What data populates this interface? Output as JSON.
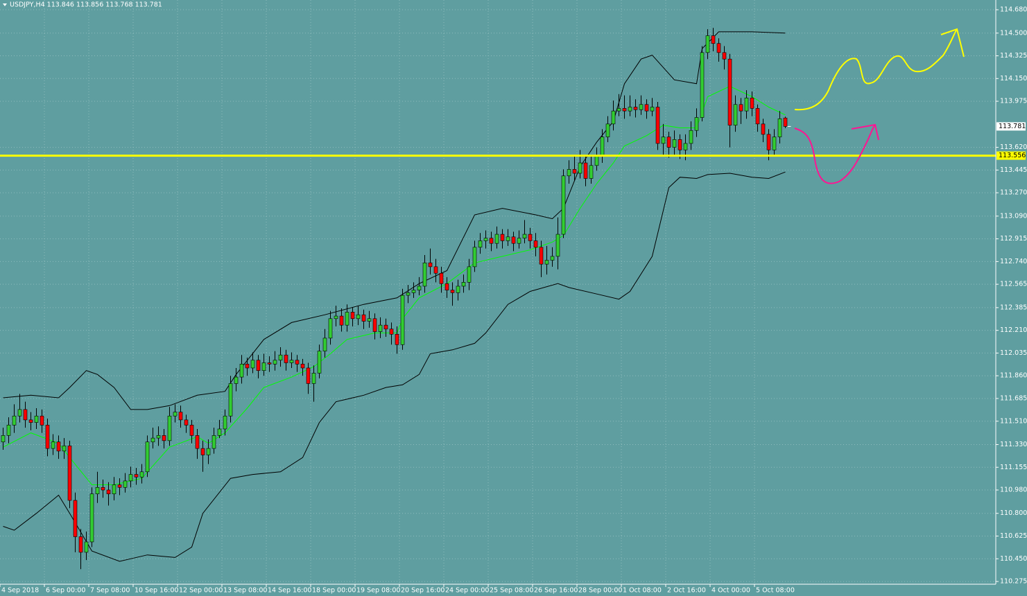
{
  "chart_data": {
    "type": "candlestick",
    "title": "USDJPY,H4  113.846 113.856 113.768 113.781",
    "categories": [
      "4 Sep 2018",
      null,
      null,
      null,
      null,
      null,
      null,
      null,
      "6 Sep 00:00",
      null,
      null,
      null,
      null,
      null,
      null,
      null,
      "7 Sep 08:00",
      null,
      null,
      null,
      null,
      null,
      null,
      null,
      "10 Sep 16:00",
      null,
      null,
      null,
      null,
      null,
      null,
      null,
      "12 Sep 00:00",
      null,
      null,
      null,
      null,
      null,
      null,
      null,
      "13 Sep 08:00",
      null,
      null,
      null,
      null,
      null,
      null,
      null,
      "14 Sep 16:00",
      null,
      null,
      null,
      null,
      null,
      null,
      null,
      "18 Sep 00:00",
      null,
      null,
      null,
      null,
      null,
      null,
      null,
      "19 Sep 08:00",
      null,
      null,
      null,
      null,
      null,
      null,
      null,
      "20 Sep 16:00",
      null,
      null,
      null,
      null,
      null,
      null,
      null,
      "24 Sep 00:00",
      null,
      null,
      null,
      null,
      null,
      null,
      null,
      "25 Sep 08:00",
      null,
      null,
      null,
      null,
      null,
      null,
      null,
      "26 Sep 16:00",
      null,
      null,
      null,
      null,
      null,
      null,
      null,
      "28 Sep 00:00",
      null,
      null,
      null,
      null,
      null,
      null,
      null,
      "1 Oct 08:00",
      null,
      null,
      null,
      null,
      null,
      null,
      null,
      "2 Oct 16:00",
      null,
      null,
      null,
      null,
      null,
      null,
      null,
      "4 Oct 00:00",
      null,
      null,
      null,
      null,
      null,
      null,
      null,
      "5 Oct 08:00",
      null,
      null,
      null,
      null,
      null
    ],
    "open": [
      111.35,
      111.4,
      111.48,
      111.55,
      111.6,
      111.52,
      111.5,
      111.55,
      111.48,
      111.3,
      111.35,
      111.28,
      111.32,
      110.9,
      110.62,
      110.5,
      110.58,
      110.95,
      111.0,
      110.98,
      110.95,
      111.02,
      111.0,
      111.05,
      111.1,
      111.08,
      111.12,
      111.35,
      111.38,
      111.4,
      111.36,
      111.55,
      111.58,
      111.52,
      111.48,
      111.4,
      111.3,
      111.25,
      111.3,
      111.4,
      111.45,
      111.55,
      111.8,
      111.85,
      111.95,
      111.92,
      111.98,
      111.9,
      111.96,
      111.95,
      111.98,
      112.02,
      111.96,
      111.98,
      111.95,
      111.92,
      111.8,
      111.88,
      112.05,
      112.15,
      112.3,
      112.32,
      112.25,
      112.35,
      112.3,
      112.33,
      112.28,
      112.3,
      112.2,
      112.25,
      112.22,
      112.18,
      112.1,
      112.48,
      112.5,
      112.52,
      112.55,
      112.73,
      112.7,
      112.65,
      112.57,
      112.52,
      112.5,
      112.55,
      112.58,
      112.7,
      112.85,
      112.9,
      112.92,
      112.88,
      112.95,
      112.9,
      112.93,
      112.88,
      112.92,
      112.95,
      112.9,
      112.85,
      112.72,
      112.75,
      112.78,
      112.95,
      113.4,
      113.45,
      113.42,
      113.5,
      113.38,
      113.48,
      113.55,
      113.7,
      113.8,
      113.9,
      113.92,
      113.9,
      113.93,
      113.91,
      113.95,
      113.9,
      113.93,
      113.65,
      113.7,
      113.62,
      113.68,
      113.6,
      113.65,
      113.75,
      113.85,
      114.35,
      114.48,
      114.42,
      114.35,
      114.3,
      113.79,
      113.95,
      113.9,
      114.0,
      113.92,
      113.8,
      113.72,
      113.6,
      113.7,
      113.846
    ],
    "high": [
      111.46,
      111.54,
      111.64,
      111.72,
      111.66,
      111.58,
      111.61,
      111.6,
      111.53,
      111.41,
      111.4,
      111.38,
      111.36,
      110.96,
      110.68,
      110.66,
      111.0,
      111.12,
      111.06,
      111.04,
      111.08,
      111.07,
      111.11,
      111.16,
      111.15,
      111.18,
      111.4,
      111.46,
      111.47,
      111.45,
      111.62,
      111.64,
      111.63,
      111.56,
      111.52,
      111.45,
      111.36,
      111.37,
      111.46,
      111.52,
      111.6,
      111.86,
      111.92,
      112.02,
      112.0,
      112.04,
      112.02,
      112.03,
      112.01,
      112.05,
      112.08,
      112.06,
      112.04,
      112.02,
      111.99,
      111.96,
      111.94,
      112.1,
      112.22,
      112.36,
      112.4,
      112.38,
      112.41,
      112.39,
      112.4,
      112.37,
      112.36,
      112.34,
      112.31,
      112.3,
      112.27,
      112.24,
      112.53,
      112.56,
      112.58,
      112.62,
      112.79,
      112.84,
      112.76,
      112.7,
      112.62,
      112.58,
      112.6,
      112.64,
      112.76,
      112.9,
      112.96,
      112.98,
      112.97,
      113.01,
      112.99,
      112.99,
      112.97,
      112.98,
      113.06,
      113.0,
      112.96,
      112.9,
      112.86,
      112.85,
      113.08,
      113.45,
      113.52,
      113.55,
      113.6,
      113.55,
      113.56,
      113.62,
      113.76,
      113.86,
      113.98,
      114.03,
      114.02,
      114.02,
      113.99,
      114.02,
      113.99,
      114.0,
      113.97,
      113.8,
      113.74,
      113.75,
      113.72,
      113.72,
      113.82,
      113.92,
      114.4,
      114.53,
      114.54,
      114.46,
      114.4,
      114.34,
      114.02,
      114.0,
      114.06,
      114.05,
      113.95,
      113.84,
      113.76,
      113.76,
      113.9,
      113.856
    ],
    "low": [
      111.29,
      111.34,
      111.42,
      111.5,
      111.46,
      111.44,
      111.45,
      111.42,
      111.24,
      111.25,
      111.22,
      111.22,
      110.84,
      110.5,
      110.37,
      110.44,
      110.54,
      110.88,
      110.92,
      110.86,
      110.9,
      110.94,
      110.96,
      111.0,
      111.02,
      111.03,
      111.08,
      111.3,
      111.32,
      111.3,
      111.32,
      111.5,
      111.46,
      111.42,
      111.34,
      111.22,
      111.12,
      111.18,
      111.26,
      111.38,
      111.4,
      111.5,
      111.74,
      111.8,
      111.86,
      111.88,
      111.84,
      111.86,
      111.89,
      111.9,
      111.93,
      111.9,
      111.92,
      111.89,
      111.86,
      111.72,
      111.66,
      111.84,
      112.0,
      112.1,
      112.24,
      112.2,
      112.2,
      112.24,
      112.25,
      112.22,
      112.23,
      112.14,
      112.15,
      112.16,
      112.1,
      112.03,
      112.06,
      112.42,
      112.46,
      112.48,
      112.5,
      112.64,
      112.58,
      112.5,
      112.46,
      112.4,
      112.44,
      112.5,
      112.52,
      112.66,
      112.8,
      112.84,
      112.82,
      112.84,
      112.84,
      112.86,
      112.82,
      112.84,
      112.88,
      112.84,
      112.78,
      112.62,
      112.64,
      112.7,
      112.68,
      112.92,
      113.34,
      113.36,
      113.38,
      113.32,
      113.34,
      113.44,
      113.5,
      113.66,
      113.75,
      113.86,
      113.84,
      113.86,
      113.85,
      113.87,
      113.84,
      113.86,
      113.6,
      113.56,
      113.54,
      113.55,
      113.53,
      113.52,
      113.6,
      113.7,
      113.82,
      114.3,
      114.36,
      114.28,
      114.22,
      113.62,
      113.74,
      113.8,
      113.84,
      113.86,
      113.74,
      113.66,
      113.52,
      113.56,
      113.65,
      113.768
    ],
    "close": [
      111.4,
      111.48,
      111.55,
      111.6,
      111.52,
      111.5,
      111.55,
      111.48,
      111.3,
      111.35,
      111.28,
      111.32,
      110.9,
      110.62,
      110.5,
      110.58,
      110.95,
      111.0,
      110.98,
      110.95,
      111.02,
      111.0,
      111.05,
      111.1,
      111.08,
      111.12,
      111.35,
      111.38,
      111.4,
      111.36,
      111.55,
      111.58,
      111.52,
      111.48,
      111.4,
      111.3,
      111.25,
      111.3,
      111.4,
      111.45,
      111.55,
      111.8,
      111.85,
      111.95,
      111.92,
      111.98,
      111.9,
      111.96,
      111.95,
      111.98,
      112.02,
      111.96,
      111.98,
      111.95,
      111.92,
      111.8,
      111.88,
      112.05,
      112.15,
      112.3,
      112.32,
      112.25,
      112.35,
      112.3,
      112.33,
      112.28,
      112.3,
      112.2,
      112.25,
      112.22,
      112.18,
      112.1,
      112.48,
      112.5,
      112.52,
      112.55,
      112.73,
      112.7,
      112.65,
      112.57,
      112.52,
      112.5,
      112.55,
      112.58,
      112.7,
      112.85,
      112.9,
      112.92,
      112.88,
      112.95,
      112.9,
      112.93,
      112.88,
      112.92,
      112.95,
      112.9,
      112.85,
      112.72,
      112.75,
      112.78,
      112.95,
      113.4,
      113.45,
      113.42,
      113.5,
      113.38,
      113.48,
      113.55,
      113.7,
      113.8,
      113.9,
      113.92,
      113.9,
      113.93,
      113.91,
      113.95,
      113.9,
      113.93,
      113.65,
      113.7,
      113.62,
      113.68,
      113.6,
      113.65,
      113.75,
      113.85,
      114.35,
      114.48,
      114.42,
      114.35,
      114.3,
      113.79,
      113.95,
      113.9,
      114.0,
      113.92,
      113.8,
      113.72,
      113.6,
      113.7,
      113.84,
      113.781
    ],
    "up_color": "#32cd32",
    "down_color": "#ff0000",
    "overlays": [
      {
        "color": "#000000",
        "x": [
          0,
          5,
          10,
          12,
          15,
          17,
          20,
          23,
          26,
          30,
          35,
          40,
          42,
          47,
          52,
          58,
          65,
          71,
          75,
          80,
          85,
          90,
          96,
          99,
          101,
          104,
          107,
          110,
          112,
          115,
          117,
          121,
          125,
          126,
          129,
          135,
          141
        ],
        "values": [
          111.69,
          111.71,
          111.69,
          111.77,
          111.9,
          111.87,
          111.77,
          111.6,
          111.6,
          111.63,
          111.71,
          111.74,
          111.87,
          112.14,
          112.27,
          112.33,
          112.41,
          112.46,
          112.57,
          112.67,
          113.1,
          113.15,
          113.1,
          113.07,
          113.15,
          113.47,
          113.66,
          113.82,
          114.11,
          114.3,
          114.33,
          114.14,
          114.11,
          114.38,
          114.51,
          114.51,
          114.5
        ]
      },
      {
        "color": "#00ff00",
        "x": [
          0,
          5,
          10,
          12,
          16,
          20,
          25,
          30,
          35,
          37,
          40,
          44,
          47,
          52,
          56,
          59,
          62,
          67,
          71,
          72,
          75,
          80,
          85,
          90,
          95,
          99,
          101,
          104,
          107,
          110,
          112,
          116,
          119,
          122,
          125,
          127,
          131,
          135,
          138,
          141
        ],
        "values": [
          111.31,
          111.42,
          111.34,
          111.23,
          111.02,
          111.02,
          111.07,
          111.31,
          111.39,
          111.34,
          111.42,
          111.61,
          111.77,
          111.85,
          111.93,
          112.03,
          112.14,
          112.19,
          112.19,
          112.3,
          112.46,
          112.57,
          112.73,
          112.78,
          112.83,
          112.89,
          112.94,
          113.15,
          113.34,
          113.5,
          113.63,
          113.71,
          113.79,
          113.77,
          113.77,
          114.01,
          114.09,
          114.01,
          113.93,
          113.87
        ]
      },
      {
        "color": "#000000",
        "x": [
          0,
          2,
          6,
          10,
          12,
          16,
          21,
          26,
          31,
          34,
          36,
          41,
          45,
          50,
          54,
          57,
          60,
          65,
          69,
          72,
          75,
          77,
          81,
          85,
          87,
          91,
          95,
          100,
          102,
          107,
          111,
          113,
          117,
          120,
          122,
          125,
          127,
          131,
          135,
          138,
          141
        ],
        "values": [
          110.7,
          110.67,
          110.8,
          110.94,
          110.8,
          110.51,
          110.43,
          110.48,
          110.46,
          110.54,
          110.8,
          111.07,
          111.1,
          111.12,
          111.23,
          111.5,
          111.66,
          111.71,
          111.77,
          111.79,
          111.87,
          112.03,
          112.06,
          112.11,
          112.19,
          112.41,
          112.51,
          112.57,
          112.54,
          112.49,
          112.45,
          112.51,
          112.78,
          113.31,
          113.39,
          113.38,
          113.41,
          113.42,
          113.39,
          113.38,
          113.43
        ]
      }
    ],
    "hline": 113.556,
    "hline_color": "#ffff00",
    "ylim": [
      110.254,
      114.755
    ],
    "yticks": [
      {
        "value": 114.68,
        "label": "114.680"
      },
      {
        "value": 114.5,
        "label": "114.500"
      },
      114.325,
      {
        "value": 114.15,
        "label": "114.150"
      },
      113.975,
      {
        "value": 113.62,
        "label": "113.620"
      },
      113.445,
      {
        "value": 113.27,
        "label": "113.270"
      },
      {
        "value": 113.09,
        "label": "113.090"
      },
      112.915,
      {
        "value": 112.74,
        "label": "112.740"
      },
      112.565,
      112.385,
      {
        "value": 112.21,
        "label": "112.210"
      },
      112.035,
      {
        "value": 111.86,
        "label": "111.860"
      },
      111.685,
      {
        "value": 111.51,
        "label": "111.510"
      },
      {
        "value": 111.33,
        "label": "111.330"
      },
      111.155,
      {
        "value": 110.98,
        "label": "110.980"
      },
      {
        "value": 110.8,
        "label": "110.800"
      },
      110.625,
      {
        "value": 110.45,
        "label": "110.450"
      },
      110.275
    ],
    "grid": true
  }
}
